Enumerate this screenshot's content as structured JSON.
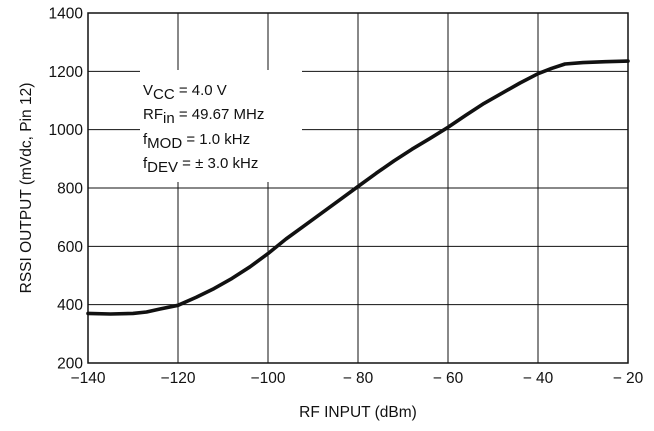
{
  "chart_data": {
    "type": "line",
    "title": "",
    "xlabel": "RF INPUT (dBm)",
    "ylabel": "RSSI OUTPUT (mVdc, Pin 12)",
    "xlim": [
      -140,
      -20
    ],
    "ylim": [
      200,
      1400
    ],
    "x_ticks": [
      -140,
      -120,
      -100,
      -80,
      -60,
      -40,
      -20
    ],
    "x_tick_labels": [
      "−140",
      "−120",
      "−100",
      "− 80",
      "− 60",
      "− 40",
      "− 20"
    ],
    "y_ticks": [
      200,
      400,
      600,
      800,
      1000,
      1200,
      1400
    ],
    "y_tick_labels": [
      "200",
      "400",
      "600",
      "800",
      "1000",
      "1200",
      "1400"
    ],
    "grid": true,
    "series": [
      {
        "x": [
          -140,
          -135,
          -130,
          -127,
          -124,
          -120,
          -116,
          -112,
          -108,
          -104,
          -100,
          -96,
          -92,
          -88,
          -84,
          -80,
          -76,
          -72,
          -68,
          -64,
          -60,
          -56,
          -52,
          -48,
          -44,
          -40,
          -37,
          -34,
          -30,
          -25,
          -20
        ],
        "y": [
          370,
          368,
          370,
          375,
          385,
          398,
          425,
          455,
          490,
          530,
          575,
          625,
          670,
          715,
          760,
          805,
          850,
          893,
          933,
          970,
          1008,
          1050,
          1090,
          1125,
          1160,
          1192,
          1210,
          1225,
          1230,
          1233,
          1235
        ]
      }
    ],
    "annotations": [
      {
        "main": "V",
        "sub": "CC",
        "rest": " = 4.0 V"
      },
      {
        "main": "RF",
        "sub": "in",
        "rest": " = 49.67 MHz"
      },
      {
        "main": "f",
        "sub": "MOD",
        "rest": " = 1.0 kHz"
      },
      {
        "main": "f",
        "sub": "DEV",
        "rest": " = ± 3.0 kHz"
      }
    ]
  }
}
